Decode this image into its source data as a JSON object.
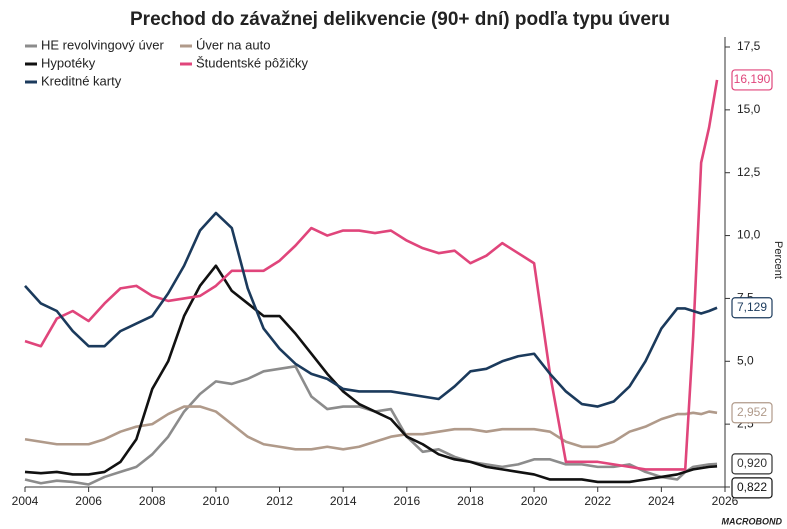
{
  "chart_data": {
    "type": "line",
    "title": "Prechod do závažnej delikvencie (90+ dní) podľa typu úveru",
    "y_label": "Percent",
    "source": "MACROBOND",
    "x": [
      2004,
      2004.5,
      2005,
      2005.5,
      2006,
      2006.5,
      2007,
      2007.5,
      2008,
      2008.5,
      2009,
      2009.5,
      2010,
      2010.5,
      2011,
      2011.5,
      2012,
      2012.5,
      2013,
      2013.5,
      2014,
      2014.5,
      2015,
      2015.5,
      2016,
      2016.5,
      2017,
      2017.5,
      2018,
      2018.5,
      2019,
      2019.5,
      2020,
      2020.5,
      2021,
      2021.5,
      2022,
      2022.5,
      2023,
      2023.5,
      2024,
      2024.5,
      2024.75,
      2025,
      2025.25,
      2025.5,
      2025.75
    ],
    "series": [
      {
        "name": "HE revolvingový úver",
        "color": "#8c8c8c",
        "values": [
          0.3,
          0.15,
          0.25,
          0.2,
          0.1,
          0.4,
          0.6,
          0.8,
          1.3,
          2.0,
          3.0,
          3.7,
          4.2,
          4.1,
          4.3,
          4.6,
          4.7,
          4.8,
          3.6,
          3.1,
          3.2,
          3.2,
          3.0,
          3.1,
          2.0,
          1.4,
          1.5,
          1.2,
          1.0,
          0.9,
          0.8,
          0.9,
          1.1,
          1.1,
          0.9,
          0.9,
          0.8,
          0.8,
          0.9,
          0.6,
          0.4,
          0.3,
          0.6,
          0.8,
          0.85,
          0.9,
          0.92
        ],
        "value_labels": [
          null,
          null,
          null,
          null,
          null,
          null,
          null,
          null,
          null,
          null,
          null,
          null,
          null,
          null,
          null,
          null,
          null,
          null,
          null,
          null,
          null,
          null,
          null,
          null,
          null,
          null,
          null,
          null,
          null,
          null,
          null,
          null,
          null,
          null,
          null,
          null,
          null,
          null,
          null,
          null,
          null,
          null,
          null,
          null,
          null,
          null,
          "0,920"
        ]
      },
      {
        "name": "Úver na auto",
        "color": "#b09a8a",
        "values": [
          1.9,
          1.8,
          1.7,
          1.7,
          1.7,
          1.9,
          2.2,
          2.4,
          2.5,
          2.9,
          3.2,
          3.2,
          3.0,
          2.5,
          2.0,
          1.7,
          1.6,
          1.5,
          1.5,
          1.6,
          1.5,
          1.6,
          1.8,
          2.0,
          2.1,
          2.1,
          2.2,
          2.3,
          2.3,
          2.2,
          2.3,
          2.3,
          2.3,
          2.2,
          1.8,
          1.6,
          1.6,
          1.8,
          2.2,
          2.4,
          2.7,
          2.9,
          2.9,
          2.95,
          2.9,
          3.0,
          2.952
        ],
        "value_labels": [
          null,
          null,
          null,
          null,
          null,
          null,
          null,
          null,
          null,
          null,
          null,
          null,
          null,
          null,
          null,
          null,
          null,
          null,
          null,
          null,
          null,
          null,
          null,
          null,
          null,
          null,
          null,
          null,
          null,
          null,
          null,
          null,
          null,
          null,
          null,
          null,
          null,
          null,
          null,
          null,
          null,
          null,
          null,
          null,
          null,
          null,
          "2,952"
        ]
      },
      {
        "name": "Hypotéky",
        "color": "#111111",
        "values": [
          0.6,
          0.55,
          0.6,
          0.5,
          0.5,
          0.6,
          1.0,
          1.9,
          3.9,
          5.0,
          6.8,
          8.0,
          8.8,
          7.8,
          7.3,
          6.8,
          6.8,
          6.1,
          5.3,
          4.5,
          3.8,
          3.3,
          3.0,
          2.7,
          2.0,
          1.7,
          1.3,
          1.1,
          1.0,
          0.8,
          0.7,
          0.6,
          0.5,
          0.3,
          0.3,
          0.3,
          0.2,
          0.2,
          0.2,
          0.3,
          0.4,
          0.5,
          0.6,
          0.7,
          0.75,
          0.8,
          0.822
        ],
        "value_labels": [
          null,
          null,
          null,
          null,
          null,
          null,
          null,
          null,
          null,
          null,
          null,
          null,
          null,
          null,
          null,
          null,
          null,
          null,
          null,
          null,
          null,
          null,
          null,
          null,
          null,
          null,
          null,
          null,
          null,
          null,
          null,
          null,
          null,
          null,
          null,
          null,
          null,
          null,
          null,
          null,
          null,
          null,
          null,
          null,
          null,
          null,
          "0,822"
        ]
      },
      {
        "name": "Študentské pôžičky",
        "color": "#e0457b",
        "values": [
          5.8,
          5.6,
          6.7,
          7.0,
          6.6,
          7.3,
          7.9,
          8.0,
          7.6,
          7.4,
          7.5,
          7.6,
          8.0,
          8.6,
          8.6,
          8.6,
          9.0,
          9.6,
          10.3,
          10.0,
          10.2,
          10.2,
          10.1,
          10.2,
          9.8,
          9.5,
          9.3,
          9.4,
          8.9,
          9.2,
          9.7,
          9.3,
          8.9,
          4.5,
          1.0,
          1.0,
          1.0,
          0.9,
          0.8,
          0.7,
          0.7,
          0.7,
          0.7,
          6.0,
          12.9,
          14.3,
          16.19
        ],
        "value_labels": [
          null,
          null,
          null,
          null,
          null,
          null,
          null,
          null,
          null,
          null,
          null,
          null,
          null,
          null,
          null,
          null,
          null,
          null,
          null,
          null,
          null,
          null,
          null,
          null,
          null,
          null,
          null,
          null,
          null,
          null,
          null,
          null,
          null,
          null,
          null,
          null,
          null,
          null,
          null,
          null,
          null,
          null,
          null,
          null,
          null,
          null,
          "16,190"
        ]
      },
      {
        "name": "Kreditné karty",
        "color": "#1b3a5c",
        "values": [
          8.0,
          7.3,
          7.0,
          6.2,
          5.6,
          5.6,
          6.2,
          6.5,
          6.8,
          7.7,
          8.8,
          10.2,
          10.9,
          10.3,
          7.9,
          6.3,
          5.5,
          4.9,
          4.5,
          4.3,
          3.9,
          3.8,
          3.8,
          3.8,
          3.7,
          3.6,
          3.5,
          4.0,
          4.6,
          4.7,
          5.0,
          5.2,
          5.3,
          4.5,
          3.8,
          3.3,
          3.2,
          3.4,
          4.0,
          5.0,
          6.3,
          7.1,
          7.1,
          7.0,
          6.9,
          7.0,
          7.129
        ],
        "value_labels": [
          null,
          null,
          null,
          null,
          null,
          null,
          null,
          null,
          null,
          null,
          null,
          null,
          null,
          null,
          null,
          null,
          null,
          null,
          null,
          null,
          null,
          null,
          null,
          null,
          null,
          null,
          null,
          null,
          null,
          null,
          null,
          null,
          null,
          null,
          null,
          null,
          null,
          null,
          null,
          null,
          null,
          null,
          null,
          null,
          null,
          null,
          "7,129"
        ]
      }
    ],
    "xlim": [
      2004,
      2026
    ],
    "xticks": [
      2004,
      2006,
      2008,
      2010,
      2012,
      2014,
      2016,
      2018,
      2020,
      2022,
      2024,
      2026
    ],
    "ylim": [
      0,
      17.5
    ],
    "yticks": [
      {
        "value": 0,
        "label": "0,0"
      },
      {
        "value": 2.5,
        "label": "2,5"
      },
      {
        "value": 5,
        "label": "5,0"
      },
      {
        "value": 7.5,
        "label": "7,5"
      },
      {
        "value": 10,
        "label": "10,0"
      },
      {
        "value": 12.5,
        "label": "12,5"
      },
      {
        "value": 15,
        "label": "15,0"
      },
      {
        "value": 17.5,
        "label": "17,5"
      }
    ],
    "legend": "top-left",
    "grid": false
  }
}
